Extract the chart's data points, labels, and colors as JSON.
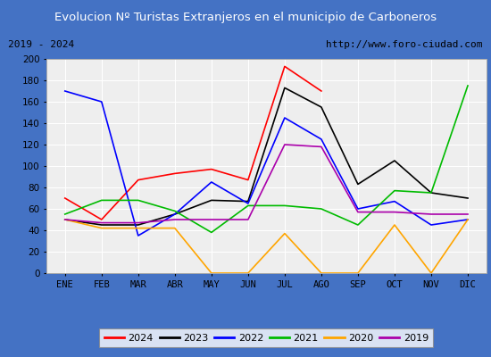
{
  "title": "Evolucion Nº Turistas Extranjeros en el municipio de Carboneros",
  "subtitle_left": "2019 - 2024",
  "subtitle_right": "http://www.foro-ciudad.com",
  "months": [
    "ENE",
    "FEB",
    "MAR",
    "ABR",
    "MAY",
    "JUN",
    "JUL",
    "AGO",
    "SEP",
    "OCT",
    "NOV",
    "DIC"
  ],
  "series": {
    "2024": [
      70,
      50,
      87,
      93,
      97,
      87,
      193,
      170,
      null,
      null,
      null,
      null
    ],
    "2023": [
      50,
      45,
      45,
      55,
      68,
      67,
      173,
      155,
      83,
      105,
      75,
      70
    ],
    "2022": [
      170,
      160,
      35,
      55,
      85,
      65,
      145,
      125,
      60,
      67,
      45,
      50
    ],
    "2021": [
      55,
      68,
      68,
      58,
      38,
      63,
      63,
      60,
      45,
      77,
      75,
      175
    ],
    "2020": [
      50,
      42,
      42,
      42,
      0,
      0,
      37,
      0,
      0,
      45,
      0,
      50
    ],
    "2019": [
      50,
      47,
      47,
      50,
      50,
      50,
      120,
      118,
      57,
      57,
      55,
      55
    ]
  },
  "colors": {
    "2024": "#ff0000",
    "2023": "#000000",
    "2022": "#0000ff",
    "2021": "#00bb00",
    "2020": "#ffa500",
    "2019": "#aa00aa"
  },
  "ylim": [
    0,
    200
  ],
  "yticks": [
    0,
    20,
    40,
    60,
    80,
    100,
    120,
    140,
    160,
    180,
    200
  ],
  "title_bg_color": "#4472c4",
  "title_text_color": "#ffffff",
  "subtitle_bg_color": "#e8e8e8",
  "plot_bg_color": "#eeeeee",
  "grid_color": "#ffffff",
  "outer_bg_color": "#4472c4"
}
